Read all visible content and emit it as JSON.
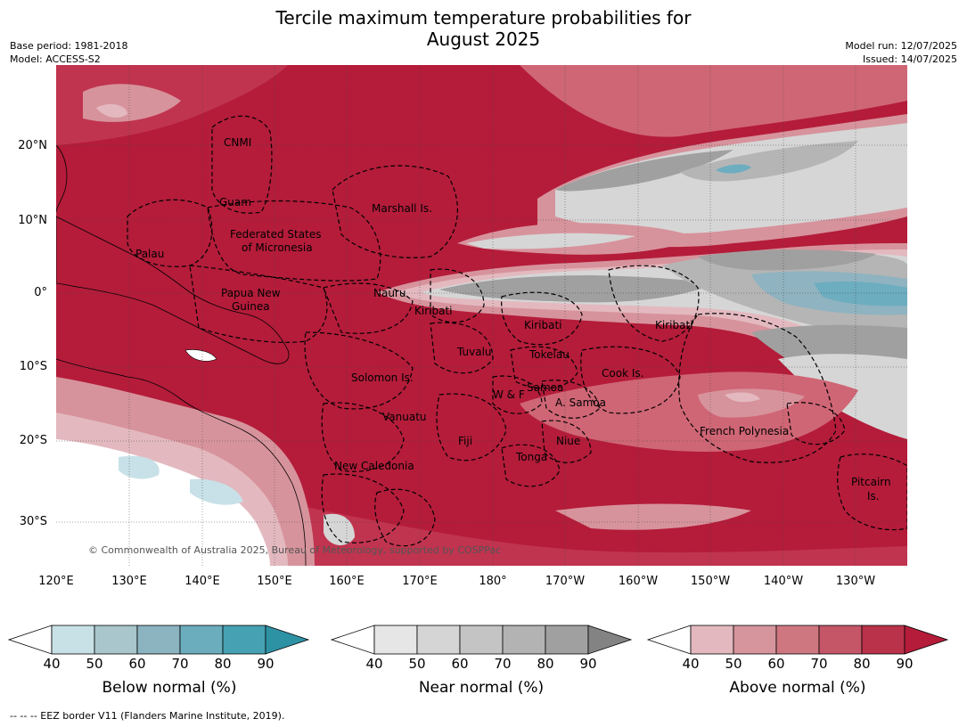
{
  "header": {
    "title_line1": "Tercile maximum temperature probabilities for",
    "title_line2": "August 2025",
    "base_period": "Base period: 1981-2018",
    "model": "Model: ACCESS-S2",
    "model_run": "Model run: 12/07/2025",
    "issued": "Issued: 14/07/2025"
  },
  "map": {
    "copyright": "© Commonwealth of Australia 2025, Bureau of Meteorology, supported by COSPPac",
    "lat_ticks": [
      "20°N",
      "10°N",
      "0°",
      "10°S",
      "20°S",
      "30°S"
    ],
    "lon_ticks": [
      "120°E",
      "130°E",
      "140°E",
      "150°E",
      "160°E",
      "170°E",
      "180°",
      "170°W",
      "160°W",
      "150°W",
      "140°W",
      "130°W"
    ],
    "country_labels": {
      "cnmi": "CNMI",
      "guam": "Guam",
      "marshall": "Marshall Is.",
      "fsm_1": "Federated States",
      "fsm_2": "of Micronesia",
      "palau": "Palau",
      "png_1": "Papua New",
      "png_2": "Guinea",
      "nauru": "Nauru",
      "kiribati_w": "Kiribati",
      "kiribati_c": "Kiribati",
      "kiribati_e": "Kiribati",
      "tuvalu": "Tuvalu",
      "tokelau": "Tokelau",
      "cook": "Cook Is.",
      "solomon": "Solomon Is.",
      "wf": "W & F",
      "samoa": "Samoa",
      "asamoa": "A. Samoa",
      "vanuatu": "Vanuatu",
      "fiji": "Fiji",
      "niue": "Niue",
      "tonga": "Tonga",
      "french_polynesia": "French Polynesia",
      "new_caledonia": "New Caledonia",
      "pitcairn_1": "Pitcairn",
      "pitcairn_2": "Is."
    },
    "colors": {
      "above_90": "#b41c3a",
      "above_80": "#c0344f",
      "above_70": "#cf6675",
      "above_60": "#d7939c",
      "above_50": "#e3b9bf",
      "near_80": "#a0a0a0",
      "near_70": "#b5b5b5",
      "near_60": "#c4c4c4",
      "near_50": "#d6d6d6",
      "below_60": "#8fb3c0",
      "below_70": "#6dadc0",
      "below_50": "#c8e1e8"
    }
  },
  "colorbars": [
    {
      "label": "Below normal (%)",
      "ticks": [
        "40",
        "50",
        "60",
        "70",
        "80",
        "90"
      ],
      "colors": [
        "#ffffff",
        "#c8e1e7",
        "#a8c6cb",
        "#8bb3c0",
        "#6badbd",
        "#46a2b3",
        "#2e92a5"
      ]
    },
    {
      "label": "Near normal (%)",
      "ticks": [
        "40",
        "50",
        "60",
        "70",
        "80",
        "90"
      ],
      "colors": [
        "#ffffff",
        "#e6e6e6",
        "#d5d5d5",
        "#c4c4c4",
        "#b3b3b3",
        "#a0a0a0",
        "#838383"
      ]
    },
    {
      "label": "Above normal (%)",
      "ticks": [
        "40",
        "50",
        "60",
        "70",
        "80",
        "90"
      ],
      "colors": [
        "#ffffff",
        "#e3b9bf",
        "#d6949d",
        "#cf7780",
        "#c45667",
        "#b9324a",
        "#b41c3a"
      ]
    }
  ],
  "footnote": "--  --  -- EEZ border V11 (Flanders Marine Institute, 2019)."
}
